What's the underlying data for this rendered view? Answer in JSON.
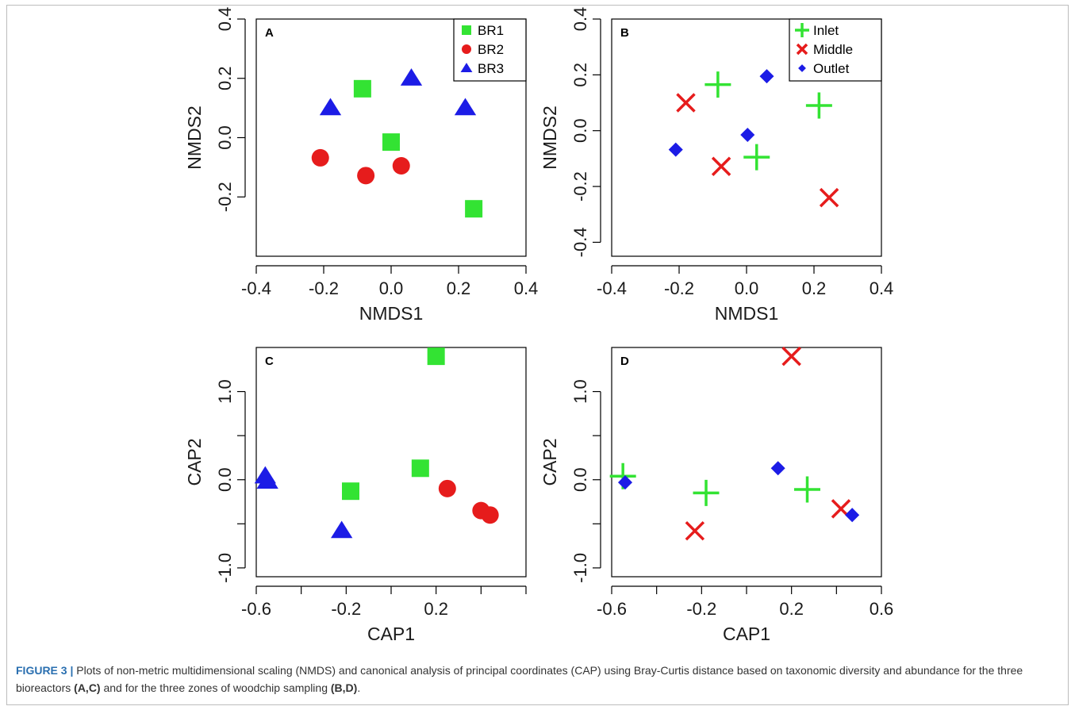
{
  "caption": {
    "label": "FIGURE 3 |",
    "text_1": " Plots of non-metric multidimensional scaling (NMDS) and canonical analysis of principal coordinates (CAP) using Bray-Curtis distance based on taxonomic diversity and abundance for the three bioreactors ",
    "bold_1": "(A,C)",
    "text_2": " and for the three zones of woodchip sampling ",
    "bold_2": "(B,D)",
    "text_3": "."
  },
  "chart_data": [
    {
      "panel": "A",
      "type": "scatter",
      "xlabel": "NMDS1",
      "ylabel": "NMDS2",
      "xlim": [
        -0.4,
        0.4
      ],
      "ylim": [
        -0.4,
        0.4
      ],
      "xticks": [
        -0.4,
        -0.2,
        0.0,
        0.2,
        0.4
      ],
      "xtick_labels": [
        "-0.4",
        "-0.2",
        "0.0",
        "0.2",
        "0.4"
      ],
      "yticks": [
        -0.2,
        0.0,
        0.2,
        0.4
      ],
      "ytick_labels": [
        "-0.2",
        "0.0",
        "0.2",
        "0.4"
      ],
      "legend": "top-right",
      "series": [
        {
          "name": "BR1",
          "marker": "square",
          "color": "#33e333",
          "points": [
            [
              -0.085,
              0.165
            ],
            [
              0.0,
              -0.015
            ],
            [
              0.245,
              -0.24
            ]
          ]
        },
        {
          "name": "BR2",
          "marker": "circle",
          "color": "#e61c1c",
          "points": [
            [
              -0.21,
              -0.068
            ],
            [
              -0.075,
              -0.128
            ],
            [
              0.03,
              -0.095
            ]
          ]
        },
        {
          "name": "BR3",
          "marker": "triangle",
          "color": "#1c1ce6",
          "points": [
            [
              -0.18,
              0.1
            ],
            [
              0.06,
              0.2
            ],
            [
              0.22,
              0.1
            ]
          ]
        }
      ]
    },
    {
      "panel": "B",
      "type": "scatter",
      "xlabel": "NMDS1",
      "ylabel": "NMDS2",
      "xlim": [
        -0.4,
        0.4
      ],
      "ylim": [
        -0.45,
        0.4
      ],
      "xticks": [
        -0.4,
        -0.2,
        0.0,
        0.2,
        0.4
      ],
      "xtick_labels": [
        "-0.4",
        "-0.2",
        "0.0",
        "0.2",
        "0.4"
      ],
      "yticks": [
        -0.4,
        -0.2,
        0.0,
        0.2,
        0.4
      ],
      "ytick_labels": [
        "-0.4",
        "-0.2",
        "0.0",
        "0.2",
        "0.4"
      ],
      "legend": "top-right",
      "series": [
        {
          "name": "Inlet",
          "marker": "plus",
          "color": "#33e333",
          "points": [
            [
              -0.085,
              0.165
            ],
            [
              0.215,
              0.09
            ],
            [
              0.03,
              -0.095
            ]
          ]
        },
        {
          "name": "Middle",
          "marker": "cross",
          "color": "#e61c1c",
          "points": [
            [
              -0.18,
              0.1
            ],
            [
              -0.075,
              -0.128
            ],
            [
              0.245,
              -0.24
            ]
          ]
        },
        {
          "name": "Outlet",
          "marker": "diamond",
          "color": "#1c1ce6",
          "points": [
            [
              0.06,
              0.195
            ],
            [
              0.003,
              -0.015
            ],
            [
              -0.21,
              -0.068
            ]
          ]
        }
      ]
    },
    {
      "panel": "C",
      "type": "scatter",
      "xlabel": "CAP1",
      "ylabel": "CAP2",
      "xlim": [
        -0.6,
        0.6
      ],
      "ylim": [
        -1.1,
        1.5
      ],
      "xticks": [
        -0.6,
        -0.4,
        -0.2,
        0.0,
        0.2,
        0.4,
        0.6
      ],
      "xtick_labels": [
        "-0.6",
        "",
        "-0.2",
        "",
        "0.2",
        "",
        ""
      ],
      "yticks": [
        -1.0,
        -0.5,
        0.0,
        0.5,
        1.0
      ],
      "ytick_labels": [
        "-1.0",
        "",
        "0.0",
        "",
        "1.0"
      ],
      "series": [
        {
          "name": "BR1",
          "marker": "square",
          "color": "#33e333",
          "points": [
            [
              0.2,
              1.4
            ],
            [
              0.13,
              0.13
            ],
            [
              -0.18,
              -0.13
            ]
          ]
        },
        {
          "name": "BR2",
          "marker": "circle",
          "color": "#e61c1c",
          "points": [
            [
              0.25,
              -0.1
            ],
            [
              0.4,
              -0.35
            ],
            [
              0.44,
              -0.4
            ]
          ]
        },
        {
          "name": "BR3",
          "marker": "triangle",
          "color": "#1c1ce6",
          "points": [
            [
              -0.56,
              0.04
            ],
            [
              -0.55,
              -0.02
            ],
            [
              -0.22,
              -0.58
            ]
          ]
        }
      ]
    },
    {
      "panel": "D",
      "type": "scatter",
      "xlabel": "CAP1",
      "ylabel": "CAP2",
      "xlim": [
        -0.6,
        0.6
      ],
      "ylim": [
        -1.1,
        1.5
      ],
      "xticks": [
        -0.6,
        -0.4,
        -0.2,
        0.0,
        0.2,
        0.4,
        0.6
      ],
      "xtick_labels": [
        "-0.6",
        "",
        "-0.2",
        "",
        "0.2",
        "",
        "0.6"
      ],
      "yticks": [
        -1.0,
        -0.5,
        0.0,
        0.5,
        1.0
      ],
      "ytick_labels": [
        "-1.0",
        "",
        "0.0",
        "",
        "1.0"
      ],
      "series": [
        {
          "name": "Inlet",
          "marker": "plus",
          "color": "#33e333",
          "points": [
            [
              -0.55,
              0.04
            ],
            [
              -0.18,
              -0.15
            ],
            [
              0.27,
              -0.11
            ]
          ]
        },
        {
          "name": "Middle",
          "marker": "cross",
          "color": "#e61c1c",
          "points": [
            [
              0.2,
              1.4
            ],
            [
              -0.23,
              -0.58
            ],
            [
              0.42,
              -0.33
            ]
          ]
        },
        {
          "name": "Outlet",
          "marker": "diamond",
          "color": "#1c1ce6",
          "points": [
            [
              -0.54,
              -0.03
            ],
            [
              0.14,
              0.13
            ],
            [
              0.47,
              -0.4
            ]
          ]
        }
      ]
    }
  ]
}
